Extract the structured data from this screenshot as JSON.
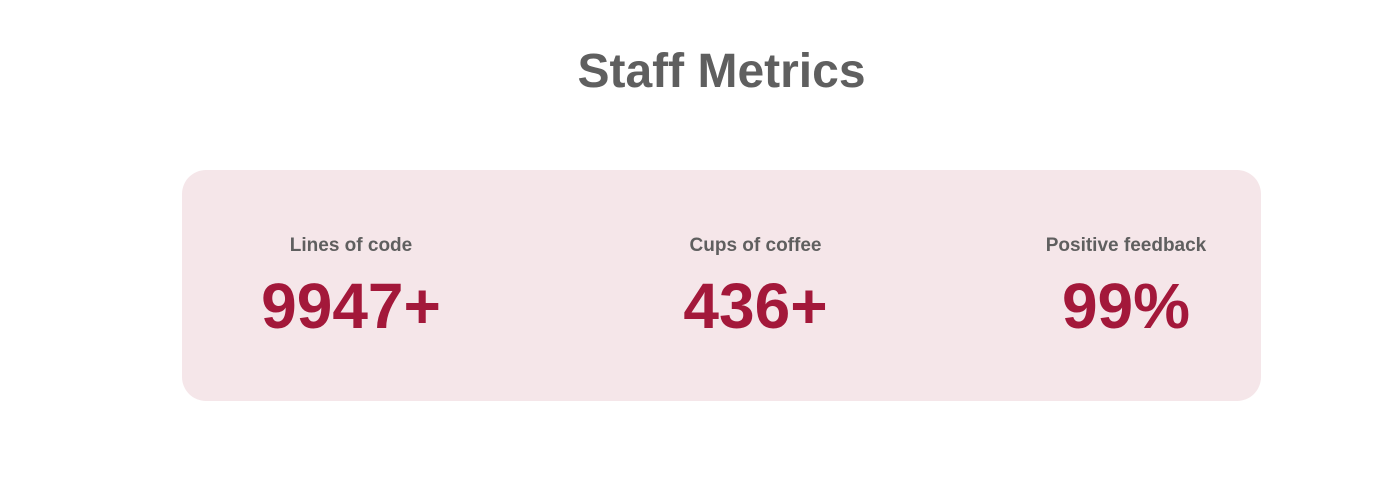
{
  "header": {
    "title": "Staff Metrics"
  },
  "metrics": [
    {
      "label": "Lines of code",
      "value": "9947+"
    },
    {
      "label": "Cups of coffee",
      "value": "436+"
    },
    {
      "label": "Positive feedback",
      "value": "99%"
    }
  ],
  "colors": {
    "title": "#5f5f5f",
    "card_background": "#f5e6e9",
    "value_accent": "#a3183a",
    "label": "#5f5f5f"
  }
}
